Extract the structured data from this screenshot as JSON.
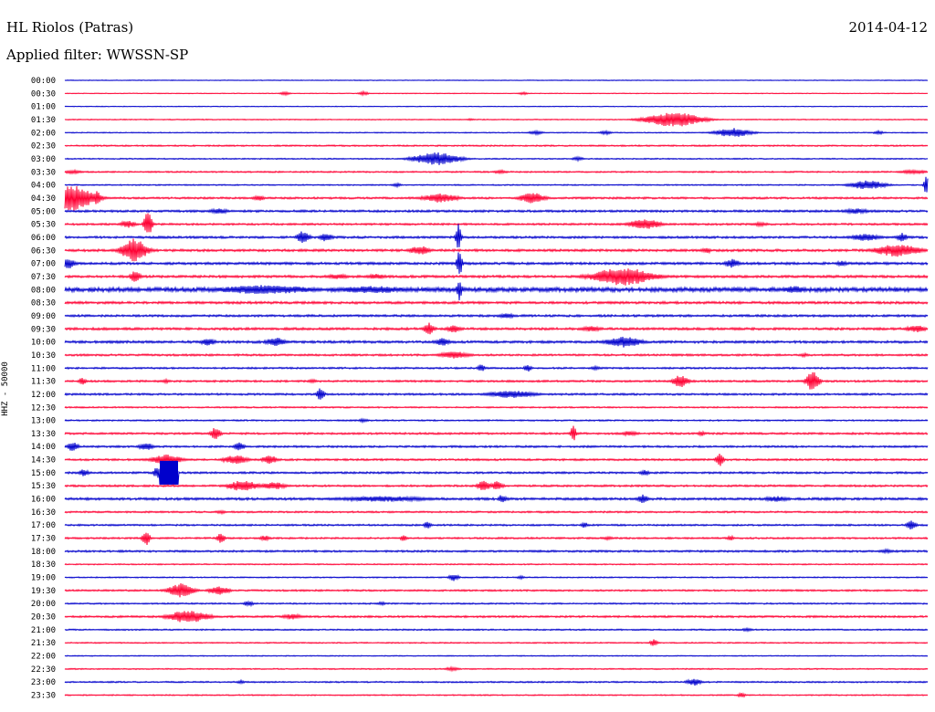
{
  "header": {
    "station": "HL Riolos (Patras)",
    "date": "2014-04-12",
    "filter": "Applied filter: WWSSN-SP",
    "channel": "HHZ - 50000"
  },
  "chart_data": {
    "type": "line",
    "title": "HL Riolos (Patras)",
    "subtitle": "Applied filter: WWSSN-SP",
    "ylabel": "HHZ - 50000",
    "colors": [
      "#0000cc",
      "#ff0033"
    ],
    "rows": [
      {
        "label": "00:00",
        "color": "#0000cc",
        "amp": 0.3,
        "events": []
      },
      {
        "label": "00:30",
        "color": "#ff0033",
        "amp": 0.3,
        "events": [
          {
            "x": 312,
            "a": 2,
            "w": 4
          },
          {
            "x": 398,
            "a": 2,
            "w": 4
          },
          {
            "x": 573,
            "a": 1.5,
            "w": 4
          }
        ]
      },
      {
        "label": "01:00",
        "color": "#0000cc",
        "amp": 0.3,
        "events": []
      },
      {
        "label": "01:30",
        "color": "#ff0033",
        "amp": 0.4,
        "events": [
          {
            "x": 738,
            "a": 8,
            "w": 22
          },
          {
            "x": 515,
            "a": 1,
            "w": 4
          }
        ]
      },
      {
        "label": "02:00",
        "color": "#0000cc",
        "amp": 0.4,
        "events": [
          {
            "x": 803,
            "a": 5,
            "w": 14
          },
          {
            "x": 587,
            "a": 2,
            "w": 6
          },
          {
            "x": 663,
            "a": 2,
            "w": 5
          },
          {
            "x": 962,
            "a": 2,
            "w": 4
          }
        ]
      },
      {
        "label": "02:30",
        "color": "#ff0033",
        "amp": 0.6,
        "events": []
      },
      {
        "label": "03:00",
        "color": "#0000cc",
        "amp": 0.5,
        "events": [
          {
            "x": 478,
            "a": 7,
            "w": 18
          },
          {
            "x": 633,
            "a": 2,
            "w": 5
          }
        ]
      },
      {
        "label": "03:30",
        "color": "#ff0033",
        "amp": 0.6,
        "events": [
          {
            "x": 80,
            "a": 2,
            "w": 8
          },
          {
            "x": 548,
            "a": 2,
            "w": 6
          },
          {
            "x": 1000,
            "a": 2,
            "w": 12
          }
        ]
      },
      {
        "label": "04:00",
        "color": "#0000cc",
        "amp": 0.5,
        "events": [
          {
            "x": 950,
            "a": 5,
            "w": 14
          },
          {
            "x": 1015,
            "a": 13,
            "w": 2
          },
          {
            "x": 434,
            "a": 2,
            "w": 4
          }
        ]
      },
      {
        "label": "04:30",
        "color": "#ff0033",
        "amp": 0.8,
        "events": [
          {
            "x": 78,
            "a": 14,
            "w": 18
          },
          {
            "x": 106,
            "a": 8,
            "w": 3
          },
          {
            "x": 482,
            "a": 5,
            "w": 14
          },
          {
            "x": 583,
            "a": 6,
            "w": 10
          },
          {
            "x": 283,
            "a": 3,
            "w": 5
          }
        ]
      },
      {
        "label": "05:00",
        "color": "#0000cc",
        "amp": 0.9,
        "events": [
          {
            "x": 240,
            "a": 3,
            "w": 8
          },
          {
            "x": 938,
            "a": 3,
            "w": 10
          }
        ]
      },
      {
        "label": "05:30",
        "color": "#ff0033",
        "amp": 0.8,
        "events": [
          {
            "x": 162,
            "a": 15,
            "w": 3
          },
          {
            "x": 140,
            "a": 4,
            "w": 6
          },
          {
            "x": 706,
            "a": 6,
            "w": 12
          },
          {
            "x": 832,
            "a": 2,
            "w": 8
          }
        ]
      },
      {
        "label": "06:00",
        "color": "#0000cc",
        "amp": 0.9,
        "events": [
          {
            "x": 332,
            "a": 7,
            "w": 5
          },
          {
            "x": 357,
            "a": 5,
            "w": 5
          },
          {
            "x": 502,
            "a": 17,
            "w": 2
          },
          {
            "x": 948,
            "a": 4,
            "w": 12
          },
          {
            "x": 988,
            "a": 5,
            "w": 4
          }
        ]
      },
      {
        "label": "06:30",
        "color": "#ff0033",
        "amp": 1.0,
        "events": [
          {
            "x": 147,
            "a": 13,
            "w": 10
          },
          {
            "x": 460,
            "a": 5,
            "w": 8
          },
          {
            "x": 983,
            "a": 7,
            "w": 18
          },
          {
            "x": 774,
            "a": 3,
            "w": 4
          }
        ]
      },
      {
        "label": "07:00",
        "color": "#0000cc",
        "amp": 1.0,
        "events": [
          {
            "x": 75,
            "a": 6,
            "w": 5
          },
          {
            "x": 503,
            "a": 16,
            "w": 2
          },
          {
            "x": 802,
            "a": 5,
            "w": 6
          },
          {
            "x": 922,
            "a": 3,
            "w": 5
          }
        ]
      },
      {
        "label": "07:30",
        "color": "#ff0033",
        "amp": 1.0,
        "events": [
          {
            "x": 682,
            "a": 10,
            "w": 24
          },
          {
            "x": 148,
            "a": 7,
            "w": 4
          },
          {
            "x": 370,
            "a": 3,
            "w": 8
          },
          {
            "x": 412,
            "a": 3,
            "w": 8
          }
        ]
      },
      {
        "label": "08:00",
        "color": "#0000cc",
        "amp": 1.8,
        "events": [
          {
            "x": 290,
            "a": 5,
            "w": 40
          },
          {
            "x": 408,
            "a": 4,
            "w": 30
          },
          {
            "x": 870,
            "a": 4,
            "w": 10
          },
          {
            "x": 503,
            "a": 12,
            "w": 2
          }
        ]
      },
      {
        "label": "08:30",
        "color": "#ff0033",
        "amp": 1.0,
        "events": []
      },
      {
        "label": "09:00",
        "color": "#0000cc",
        "amp": 0.9,
        "events": [
          {
            "x": 555,
            "a": 3,
            "w": 6
          }
        ]
      },
      {
        "label": "09:30",
        "color": "#ff0033",
        "amp": 1.0,
        "events": [
          {
            "x": 470,
            "a": 7,
            "w": 4
          },
          {
            "x": 497,
            "a": 4,
            "w": 6
          },
          {
            "x": 648,
            "a": 3,
            "w": 8
          },
          {
            "x": 1003,
            "a": 4,
            "w": 8
          }
        ]
      },
      {
        "label": "10:00",
        "color": "#0000cc",
        "amp": 1.0,
        "events": [
          {
            "x": 228,
            "a": 4,
            "w": 6
          },
          {
            "x": 302,
            "a": 5,
            "w": 8
          },
          {
            "x": 485,
            "a": 5,
            "w": 5
          },
          {
            "x": 683,
            "a": 6,
            "w": 14
          }
        ]
      },
      {
        "label": "10:30",
        "color": "#ff0033",
        "amp": 0.8,
        "events": [
          {
            "x": 498,
            "a": 4,
            "w": 12
          },
          {
            "x": 880,
            "a": 2,
            "w": 4
          }
        ]
      },
      {
        "label": "11:00",
        "color": "#0000cc",
        "amp": 0.7,
        "events": [
          {
            "x": 527,
            "a": 4,
            "w": 3
          },
          {
            "x": 578,
            "a": 4,
            "w": 3
          },
          {
            "x": 652,
            "a": 2,
            "w": 5
          }
        ]
      },
      {
        "label": "11:30",
        "color": "#ff0033",
        "amp": 0.8,
        "events": [
          {
            "x": 745,
            "a": 7,
            "w": 6
          },
          {
            "x": 890,
            "a": 11,
            "w": 5
          },
          {
            "x": 90,
            "a": 4,
            "w": 3
          },
          {
            "x": 182,
            "a": 2,
            "w": 4
          },
          {
            "x": 342,
            "a": 2,
            "w": 4
          }
        ]
      },
      {
        "label": "12:00",
        "color": "#0000cc",
        "amp": 0.8,
        "events": [
          {
            "x": 351,
            "a": 7,
            "w": 3
          },
          {
            "x": 560,
            "a": 4,
            "w": 20
          }
        ]
      },
      {
        "label": "12:30",
        "color": "#ff0033",
        "amp": 0.6,
        "events": []
      },
      {
        "label": "13:00",
        "color": "#0000cc",
        "amp": 0.6,
        "events": [
          {
            "x": 398,
            "a": 2,
            "w": 4
          }
        ]
      },
      {
        "label": "13:30",
        "color": "#ff0033",
        "amp": 0.8,
        "events": [
          {
            "x": 236,
            "a": 7,
            "w": 4
          },
          {
            "x": 628,
            "a": 10,
            "w": 2
          },
          {
            "x": 690,
            "a": 3,
            "w": 6
          },
          {
            "x": 768,
            "a": 3,
            "w": 3
          }
        ]
      },
      {
        "label": "14:00",
        "color": "#0000cc",
        "amp": 0.8,
        "events": [
          {
            "x": 80,
            "a": 6,
            "w": 4
          },
          {
            "x": 262,
            "a": 5,
            "w": 4
          },
          {
            "x": 160,
            "a": 4,
            "w": 6
          }
        ]
      },
      {
        "label": "14:30",
        "color": "#ff0033",
        "amp": 0.8,
        "events": [
          {
            "x": 182,
            "a": 6,
            "w": 12
          },
          {
            "x": 258,
            "a": 5,
            "w": 10
          },
          {
            "x": 295,
            "a": 5,
            "w": 6
          },
          {
            "x": 788,
            "a": 8,
            "w": 3
          }
        ]
      },
      {
        "label": "15:00",
        "color": "#0000cc",
        "amp": 0.8,
        "events": [
          {
            "x": 185,
            "a": 13,
            "w": 10,
            "block": true
          },
          {
            "x": 92,
            "a": 4,
            "w": 4
          },
          {
            "x": 172,
            "a": 6,
            "w": 3
          },
          {
            "x": 706,
            "a": 3,
            "w": 4
          }
        ]
      },
      {
        "label": "15:30",
        "color": "#ff0033",
        "amp": 0.8,
        "events": [
          {
            "x": 266,
            "a": 6,
            "w": 12
          },
          {
            "x": 300,
            "a": 4,
            "w": 10
          },
          {
            "x": 530,
            "a": 6,
            "w": 5
          },
          {
            "x": 544,
            "a": 5,
            "w": 5
          }
        ]
      },
      {
        "label": "16:00",
        "color": "#0000cc",
        "amp": 1.0,
        "events": [
          {
            "x": 420,
            "a": 3,
            "w": 40
          },
          {
            "x": 550,
            "a": 5,
            "w": 3
          },
          {
            "x": 704,
            "a": 5,
            "w": 4
          },
          {
            "x": 850,
            "a": 3,
            "w": 10
          }
        ]
      },
      {
        "label": "16:30",
        "color": "#ff0033",
        "amp": 0.7,
        "events": [
          {
            "x": 242,
            "a": 2,
            "w": 4
          }
        ]
      },
      {
        "label": "17:00",
        "color": "#0000cc",
        "amp": 0.7,
        "events": [
          {
            "x": 468,
            "a": 4,
            "w": 3
          },
          {
            "x": 640,
            "a": 3,
            "w": 3
          },
          {
            "x": 998,
            "a": 5,
            "w": 4
          }
        ]
      },
      {
        "label": "17:30",
        "color": "#ff0033",
        "amp": 0.7,
        "events": [
          {
            "x": 160,
            "a": 8,
            "w": 3
          },
          {
            "x": 242,
            "a": 6,
            "w": 3
          },
          {
            "x": 290,
            "a": 3,
            "w": 4
          },
          {
            "x": 442,
            "a": 3,
            "w": 3
          },
          {
            "x": 666,
            "a": 2,
            "w": 4
          },
          {
            "x": 800,
            "a": 3,
            "w": 3
          }
        ]
      },
      {
        "label": "18:00",
        "color": "#0000cc",
        "amp": 0.8,
        "events": [
          {
            "x": 970,
            "a": 2,
            "w": 6
          }
        ]
      },
      {
        "label": "18:30",
        "color": "#ff0033",
        "amp": 0.5,
        "events": []
      },
      {
        "label": "19:00",
        "color": "#0000cc",
        "amp": 0.5,
        "events": [
          {
            "x": 497,
            "a": 4,
            "w": 4
          },
          {
            "x": 570,
            "a": 2,
            "w": 3
          }
        ]
      },
      {
        "label": "19:30",
        "color": "#ff0033",
        "amp": 0.7,
        "events": [
          {
            "x": 198,
            "a": 8,
            "w": 10
          },
          {
            "x": 240,
            "a": 5,
            "w": 8
          }
        ]
      },
      {
        "label": "20:00",
        "color": "#0000cc",
        "amp": 0.6,
        "events": [
          {
            "x": 272,
            "a": 3,
            "w": 4
          },
          {
            "x": 418,
            "a": 2,
            "w": 3
          }
        ]
      },
      {
        "label": "20:30",
        "color": "#ff0033",
        "amp": 0.8,
        "events": [
          {
            "x": 206,
            "a": 7,
            "w": 16
          },
          {
            "x": 320,
            "a": 3,
            "w": 8
          }
        ]
      },
      {
        "label": "21:00",
        "color": "#0000cc",
        "amp": 0.6,
        "events": [
          {
            "x": 818,
            "a": 2,
            "w": 4
          }
        ]
      },
      {
        "label": "21:30",
        "color": "#ff0033",
        "amp": 0.5,
        "events": [
          {
            "x": 716,
            "a": 4,
            "w": 3
          }
        ]
      },
      {
        "label": "22:00",
        "color": "#0000cc",
        "amp": 0.4,
        "events": []
      },
      {
        "label": "22:30",
        "color": "#ff0033",
        "amp": 0.5,
        "events": [
          {
            "x": 495,
            "a": 2,
            "w": 6
          }
        ]
      },
      {
        "label": "23:00",
        "color": "#0000cc",
        "amp": 0.6,
        "events": [
          {
            "x": 760,
            "a": 4,
            "w": 6
          },
          {
            "x": 264,
            "a": 2,
            "w": 3
          }
        ]
      },
      {
        "label": "23:30",
        "color": "#ff0033",
        "amp": 0.5,
        "events": [
          {
            "x": 812,
            "a": 3,
            "w": 3
          }
        ]
      }
    ]
  }
}
